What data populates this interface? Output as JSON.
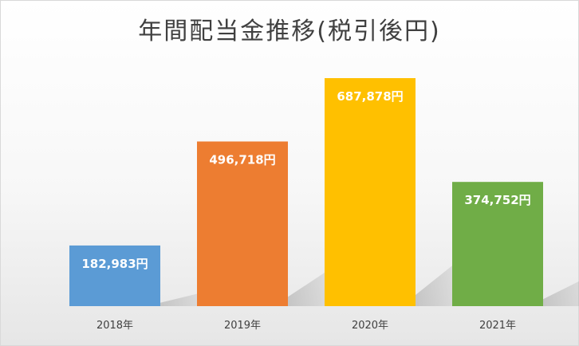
{
  "chart_data": {
    "type": "bar",
    "title": "年間配当金推移(税引後円)",
    "xlabel": "",
    "ylabel": "",
    "categories": [
      "2018年",
      "2019年",
      "2020年",
      "2021年"
    ],
    "values": [
      182983,
      496718,
      687878,
      374752
    ],
    "data_labels": [
      "182,983円",
      "496,718円",
      "687,878円",
      "374,752円"
    ],
    "colors": [
      "#5B9BD5",
      "#ED7D31",
      "#FFC000",
      "#70AD47"
    ],
    "ylim": [
      0,
      800000
    ],
    "grid": false,
    "legend": "none"
  }
}
